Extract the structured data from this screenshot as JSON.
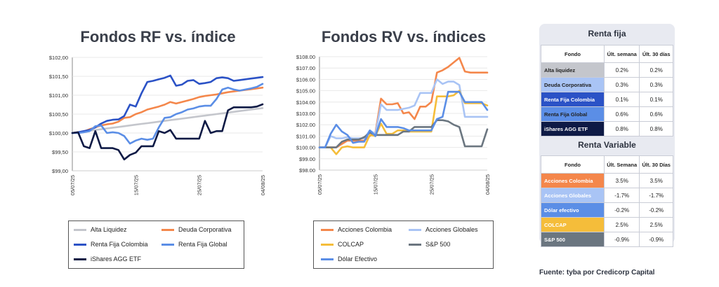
{
  "chart_data": [
    {
      "type": "line",
      "title": "Fondos RF vs. índice",
      "ylim": [
        99.0,
        102.0
      ],
      "yticks": [
        "$99,00",
        "$99,50",
        "$100,00",
        "$100,50",
        "$101,00",
        "$101,50",
        "$102,00"
      ],
      "xticks": [
        "05/07/25",
        "15/07/25",
        "25/07/25",
        "04/08/25"
      ],
      "series": [
        {
          "name": "Alta Liquidez",
          "color": "#c4c6cc",
          "values": [
            100.0,
            100.02,
            100.04,
            100.06,
            100.08,
            100.1,
            100.12,
            100.14,
            100.16,
            100.18,
            100.2,
            100.22,
            100.24,
            100.26,
            100.28,
            100.3,
            100.32,
            100.34,
            100.36,
            100.38,
            100.4,
            100.42,
            100.44,
            100.46,
            100.48,
            100.5,
            100.52,
            100.54,
            100.56,
            100.58,
            100.6,
            100.62,
            100.64,
            100.66
          ]
        },
        {
          "name": "Deuda Corporativa",
          "color": "#f4874b",
          "values": [
            100.0,
            100.02,
            100.04,
            100.1,
            100.15,
            100.2,
            100.23,
            100.25,
            100.3,
            100.4,
            100.42,
            100.5,
            100.55,
            100.62,
            100.66,
            100.7,
            100.75,
            100.82,
            100.78,
            100.82,
            100.86,
            100.9,
            100.95,
            100.98,
            101.0,
            101.02,
            101.05,
            101.08,
            101.1,
            101.12,
            101.14,
            101.16,
            101.18,
            101.2
          ]
        },
        {
          "name": "Renta Fija Colombia",
          "color": "#2b52c6",
          "values": [
            100.0,
            100.02,
            100.05,
            100.08,
            100.15,
            100.25,
            100.32,
            100.35,
            100.36,
            100.45,
            100.75,
            100.7,
            101.05,
            101.35,
            101.38,
            101.42,
            101.46,
            101.52,
            101.25,
            101.28,
            101.38,
            101.4,
            101.3,
            101.32,
            101.35,
            101.45,
            101.47,
            101.45,
            101.38,
            101.4,
            101.42,
            101.44,
            101.46,
            101.48
          ]
        },
        {
          "name": "Renta Fija Global",
          "color": "#5b8ee6",
          "values": [
            100.0,
            100.0,
            100.02,
            100.05,
            100.18,
            100.2,
            100.0,
            100.02,
            100.0,
            99.92,
            99.72,
            99.8,
            99.85,
            99.82,
            99.85,
            100.15,
            100.4,
            100.42,
            100.5,
            100.55,
            100.62,
            100.65,
            100.7,
            100.72,
            100.72,
            100.9,
            101.15,
            101.2,
            101.15,
            101.12,
            101.15,
            101.18,
            101.22,
            101.3
          ]
        },
        {
          "name": "iShares AGG ETF",
          "color": "#0e1a45",
          "values": [
            100.0,
            100.02,
            99.65,
            99.6,
            100.05,
            99.6,
            99.6,
            99.6,
            99.55,
            99.3,
            99.42,
            99.48,
            99.65,
            99.65,
            99.65,
            100.05,
            100.0,
            100.08,
            99.85,
            99.85,
            99.85,
            99.85,
            99.85,
            100.32,
            100.0,
            100.05,
            100.05,
            100.6,
            100.68,
            100.68,
            100.68,
            100.68,
            100.7,
            100.76
          ]
        }
      ]
    },
    {
      "type": "line",
      "title": "Fondos RV vs. índices",
      "ylim": [
        98.0,
        108.0
      ],
      "yticks": [
        "$98.00",
        "$99.00",
        "$100.00",
        "$101.00",
        "$102.00",
        "$103.00",
        "$104.00",
        "$105.00",
        "$106.00",
        "$107.00",
        "$108.00"
      ],
      "xticks": [
        "05/07/25",
        "15/07/25",
        "25/07/25",
        "04/08/25"
      ],
      "series": [
        {
          "name": "Acciones Colombia",
          "color": "#f4874b",
          "values": [
            100.0,
            100.0,
            100.0,
            100.0,
            100.3,
            100.6,
            100.6,
            100.6,
            100.6,
            101.0,
            101.3,
            104.3,
            103.8,
            103.8,
            103.9,
            103.0,
            103.1,
            102.5,
            103.6,
            103.6,
            104.0,
            106.6,
            106.8,
            107.1,
            107.5,
            107.9,
            106.7,
            106.6,
            106.6,
            106.6,
            106.6
          ]
        },
        {
          "name": "Acciones Globales",
          "color": "#a9c4f5",
          "values": [
            100.0,
            100.0,
            101.0,
            100.8,
            100.8,
            100.9,
            100.8,
            100.8,
            100.8,
            101.5,
            101.2,
            103.8,
            103.3,
            103.3,
            103.3,
            103.4,
            103.5,
            103.7,
            104.8,
            104.8,
            104.8,
            106.0,
            105.6,
            105.8,
            105.8,
            105.5,
            102.7,
            102.7,
            102.7,
            102.7,
            102.7
          ]
        },
        {
          "name": "COLCAP",
          "color": "#f5bd3a",
          "values": [
            100.0,
            100.0,
            100.0,
            99.4,
            100.0,
            100.1,
            100.0,
            100.0,
            100.0,
            101.1,
            101.0,
            102.1,
            101.2,
            101.2,
            101.5,
            101.5,
            101.4,
            101.4,
            101.4,
            101.4,
            101.4,
            104.5,
            104.5,
            104.5,
            104.6,
            105.0,
            103.9,
            103.9,
            103.9,
            103.9,
            103.7
          ]
        },
        {
          "name": "S&P 500",
          "color": "#6b7680",
          "values": [
            100.0,
            100.0,
            100.0,
            100.0,
            100.5,
            100.7,
            100.7,
            100.7,
            100.9,
            101.3,
            101.1,
            101.1,
            101.1,
            101.1,
            101.1,
            101.4,
            101.4,
            101.8,
            101.8,
            101.8,
            101.8,
            102.4,
            102.4,
            102.3,
            102.0,
            101.8,
            100.1,
            100.1,
            100.1,
            100.1,
            101.6
          ]
        },
        {
          "name": "Dólar Efectivo",
          "color": "#5b8ee6",
          "values": [
            100.0,
            100.0,
            101.2,
            102.0,
            101.4,
            101.1,
            100.4,
            100.5,
            100.5,
            101.5,
            101.0,
            102.5,
            101.8,
            101.8,
            101.8,
            101.7,
            101.5,
            101.5,
            101.5,
            101.5,
            101.5,
            102.5,
            102.7,
            104.9,
            104.9,
            104.9,
            104.0,
            104.0,
            104.0,
            104.0,
            103.3
          ]
        }
      ]
    }
  ],
  "legend_rf": [
    "Alta Liquidez",
    "Deuda Corporativa",
    "Renta Fija Colombia",
    "Renta Fija Global",
    "iShares AGG ETF"
  ],
  "legend_rv": [
    "Acciones Colombia",
    "Acciones Globales",
    "COLCAP",
    "S&P 500",
    "Dólar Efectivo"
  ],
  "table_rf": {
    "title": "Renta fija",
    "headers": [
      "Fondo",
      "Últ. semana",
      "Últ. 30 días"
    ],
    "rows": [
      {
        "name": "Alta liquidez",
        "week": "0.2%",
        "month": "0.2%",
        "bg": "#c4c6cc",
        "fg": "#222222"
      },
      {
        "name": "Deuda Corporativa",
        "week": "0.3%",
        "month": "0.3%",
        "bg": "#a9c4f5",
        "fg": "#222222"
      },
      {
        "name": "Renta Fija Colombia",
        "week": "0.1%",
        "month": "0.1%",
        "bg": "#2b52c6",
        "fg": "#ffffff"
      },
      {
        "name": "Renta Fija Global",
        "week": "0.6%",
        "month": "0.6%",
        "bg": "#5b8ee6",
        "fg": "#222222"
      },
      {
        "name": "iShares AGG ETF",
        "week": "0.8%",
        "month": "0.8%",
        "bg": "#0e1a45",
        "fg": "#ffffff"
      }
    ]
  },
  "table_rv": {
    "title": "Renta Variable",
    "headers": [
      "Fondo",
      "Últ. Semana",
      "Últ. 30 Días"
    ],
    "rows": [
      {
        "name": "Acciones Colombia",
        "week": "3.5%",
        "month": "3.5%",
        "bg": "#f4874b",
        "fg": "#ffffff"
      },
      {
        "name": "Acciones Globales",
        "week": "-1.7%",
        "month": "-1.7%",
        "bg": "#a9c4f5",
        "fg": "#ffffff"
      },
      {
        "name": "Dólar efectivo",
        "week": "-0.2%",
        "month": "-0.2%",
        "bg": "#5b8ee6",
        "fg": "#ffffff"
      },
      {
        "name": "COLCAP",
        "week": "2.5%",
        "month": "2.5%",
        "bg": "#f5bd3a",
        "fg": "#ffffff"
      },
      {
        "name": "S&P 500",
        "week": "-0.9%",
        "month": "-0.9%",
        "bg": "#6b7680",
        "fg": "#ffffff"
      }
    ]
  },
  "footer": "Fuente: tyba por Credicorp Capital"
}
